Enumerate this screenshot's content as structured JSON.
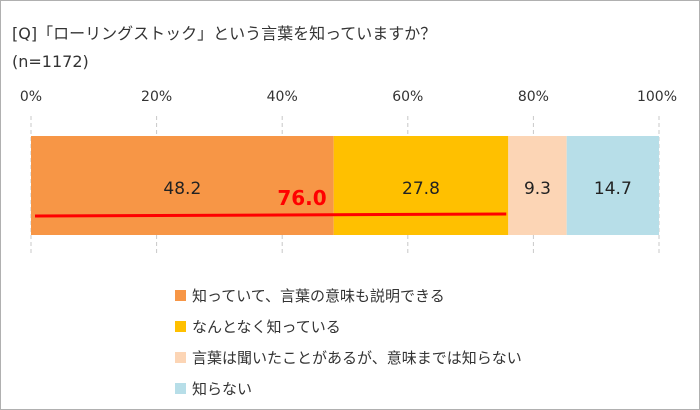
{
  "chart_data": {
    "type": "bar",
    "orientation": "horizontal-stacked",
    "title": "[Q]「ローリングストック」という言葉を知っていますか？",
    "subtitle": "(n=1172)",
    "xlim": [
      0,
      100
    ],
    "xticks": [
      "0%",
      "20%",
      "40%",
      "60%",
      "80%",
      "100%"
    ],
    "grid": true,
    "legend_position": "bottom",
    "series": [
      {
        "name": "知っていて、言葉の意味も説明できる",
        "value": 48.2,
        "label": "48.2",
        "color": "#F79646"
      },
      {
        "name": "なんとなく知っている",
        "value": 27.8,
        "label": "27.8",
        "color": "#FFC000"
      },
      {
        "name": "言葉は聞いたことがあるが、意味までは知らない",
        "value": 9.3,
        "label": "9.3",
        "color": "#FCD5B5"
      },
      {
        "name": "知らない",
        "value": 14.7,
        "label": "14.7",
        "color": "#B7DEE8"
      }
    ],
    "annotation": {
      "label": "76.0",
      "value": 76.0,
      "color": "#FF0000"
    }
  }
}
